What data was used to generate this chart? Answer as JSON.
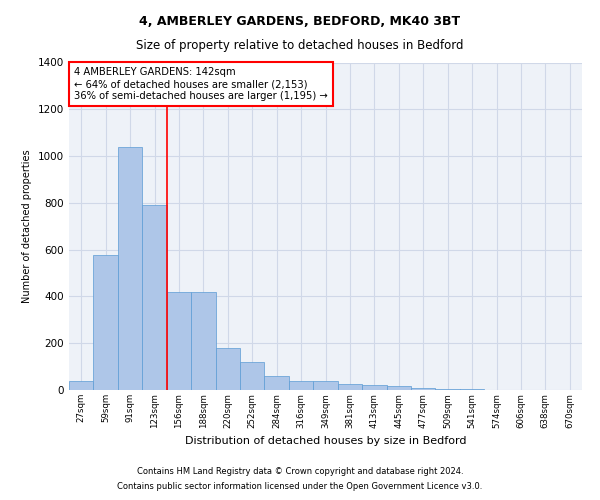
{
  "title1": "4, AMBERLEY GARDENS, BEDFORD, MK40 3BT",
  "title2": "Size of property relative to detached houses in Bedford",
  "xlabel": "Distribution of detached houses by size in Bedford",
  "ylabel": "Number of detached properties",
  "categories": [
    "27sqm",
    "59sqm",
    "91sqm",
    "123sqm",
    "156sqm",
    "188sqm",
    "220sqm",
    "252sqm",
    "284sqm",
    "316sqm",
    "349sqm",
    "381sqm",
    "413sqm",
    "445sqm",
    "477sqm",
    "509sqm",
    "541sqm",
    "574sqm",
    "606sqm",
    "638sqm",
    "670sqm"
  ],
  "values": [
    40,
    575,
    1040,
    790,
    420,
    420,
    180,
    120,
    60,
    40,
    40,
    25,
    20,
    15,
    10,
    5,
    3,
    2,
    1,
    1,
    0
  ],
  "bar_color": "#aec6e8",
  "bar_edge_color": "#5b9bd5",
  "grid_color": "#d0d8e8",
  "background_color": "#eef2f8",
  "annotation_box_text": "4 AMBERLEY GARDENS: 142sqm\n← 64% of detached houses are smaller (2,153)\n36% of semi-detached houses are larger (1,195) →",
  "annotation_box_color": "#ff0000",
  "red_line_x": 3.5,
  "ylim": [
    0,
    1400
  ],
  "yticks": [
    0,
    200,
    400,
    600,
    800,
    1000,
    1200,
    1400
  ],
  "footer1": "Contains HM Land Registry data © Crown copyright and database right 2024.",
  "footer2": "Contains public sector information licensed under the Open Government Licence v3.0."
}
